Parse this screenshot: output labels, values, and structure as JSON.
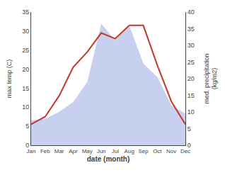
{
  "chart_data": {
    "type": "line",
    "categories": [
      "Jan",
      "Feb",
      "Mar",
      "Apr",
      "May",
      "Jun",
      "Jul",
      "Aug",
      "Sep",
      "Oct",
      "Nov",
      "Dec"
    ],
    "series": [
      {
        "type": "area",
        "axis": "y2",
        "color": "#c8d0f0",
        "values": [
          7.5,
          8.0,
          10.0,
          13.0,
          19.0,
          36.5,
          31.5,
          36.0,
          24.5,
          20.5,
          12.0,
          9.5
        ]
      },
      {
        "type": "line",
        "color": "#c0392b",
        "values": [
          5.5,
          7.5,
          13.0,
          20.5,
          24.5,
          29.5,
          28.0,
          31.5,
          31.5,
          21.0,
          11.5,
          5.5
        ]
      }
    ],
    "xlabel": "date (month)",
    "ylabel": "max temp (C)",
    "y2label": "med. precipitation\n(kg/m2)",
    "ylim": [
      0,
      35
    ],
    "yticks": [
      0,
      5,
      10,
      15,
      20,
      25,
      30,
      35
    ],
    "y2lim": [
      0,
      40
    ],
    "y2ticks": [
      0,
      5,
      10,
      15,
      20,
      25,
      30,
      35,
      40
    ],
    "grid": false
  }
}
